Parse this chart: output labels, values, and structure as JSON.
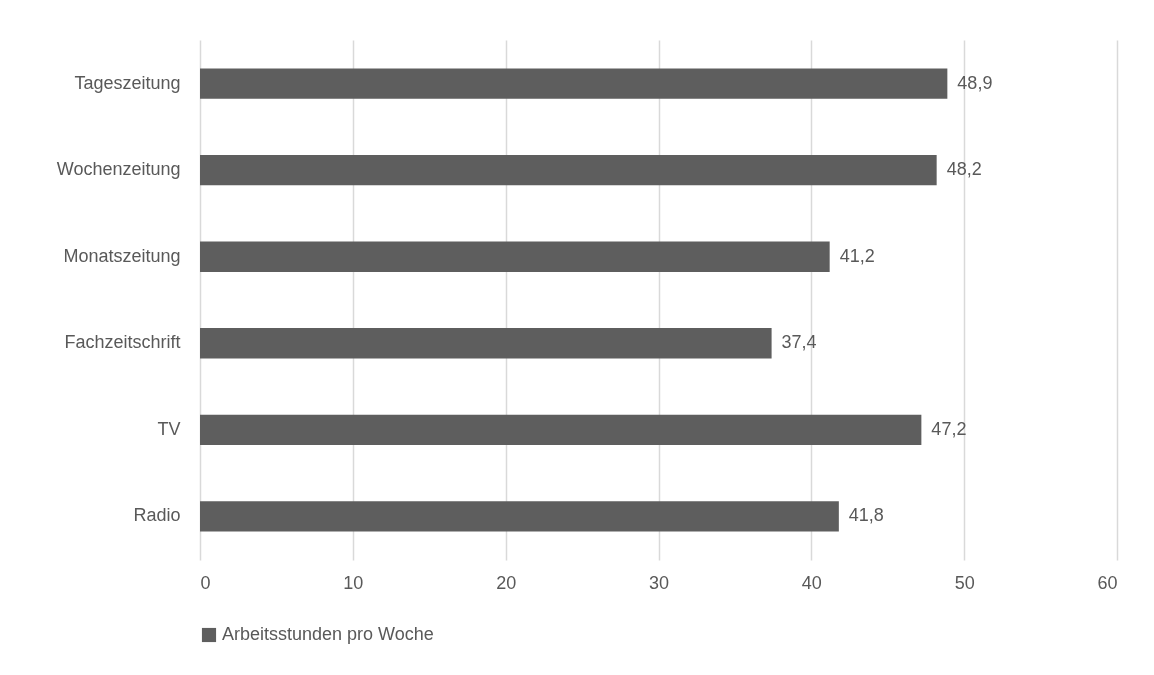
{
  "chart_data": {
    "type": "bar",
    "orientation": "horizontal",
    "categories": [
      "Tageszeitung",
      "Wochenzeitung",
      "Monatszeitung",
      "Fachzeitschrift",
      "TV",
      "Radio"
    ],
    "series": [
      {
        "name": "Arbeitsstunden pro Woche",
        "color": "#5e5e5e",
        "values": [
          48.9,
          48.2,
          41.2,
          37.4,
          47.2,
          41.8
        ],
        "value_labels": [
          "48,9",
          "48,2",
          "41,2",
          "37,4",
          "47,2",
          "41,8"
        ]
      }
    ],
    "xlim": [
      0,
      60
    ],
    "xticks": [
      0,
      10,
      20,
      30,
      40,
      50,
      60
    ],
    "grid": "x",
    "legend": "bottom"
  }
}
